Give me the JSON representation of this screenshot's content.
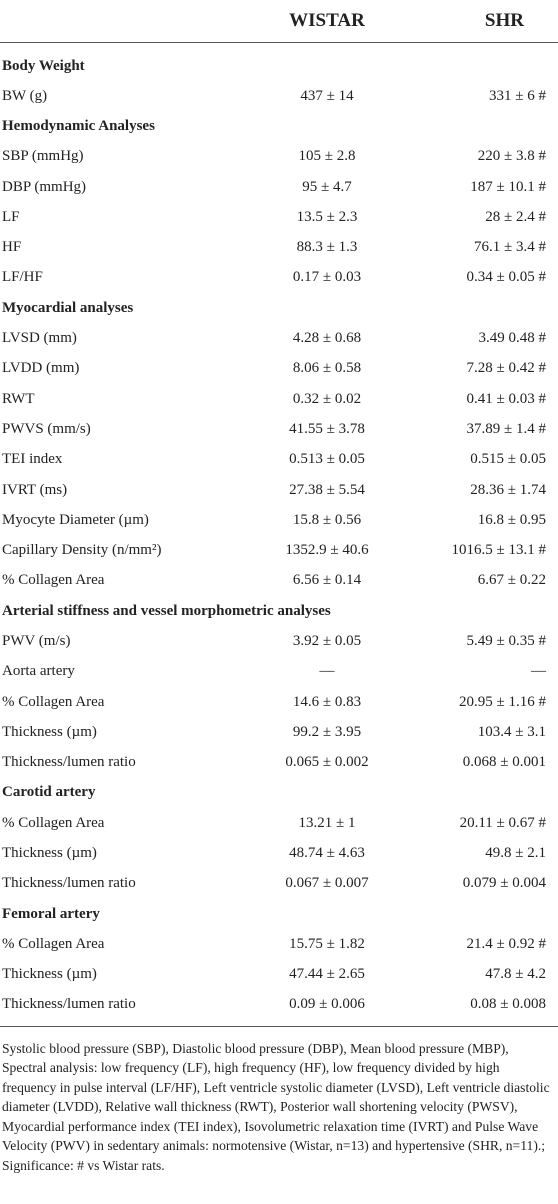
{
  "header": {
    "col1": "",
    "col2": "WISTAR",
    "col3": "SHR"
  },
  "rows": [
    {
      "type": "section",
      "label": "Body Weight",
      "wistar": "",
      "shr": ""
    },
    {
      "type": "data",
      "label": "BW (g)",
      "wistar": "437 ± 14",
      "shr": "331 ± 6 #"
    },
    {
      "type": "section",
      "label": "Hemodynamic Analyses",
      "wistar": "",
      "shr": ""
    },
    {
      "type": "data",
      "label": "SBP (mmHg)",
      "wistar": "105 ± 2.8",
      "shr": "220 ± 3.8 #"
    },
    {
      "type": "data",
      "label": "DBP (mmHg)",
      "wistar": "95 ± 4.7",
      "shr": "187 ± 10.1 #"
    },
    {
      "type": "data",
      "label": "LF",
      "wistar": "13.5 ± 2.3",
      "shr": "28 ± 2.4 #"
    },
    {
      "type": "data",
      "label": "HF",
      "wistar": "88.3 ± 1.3",
      "shr": "76.1 ± 3.4 #"
    },
    {
      "type": "data",
      "label": "LF/HF",
      "wistar": "0.17 ± 0.03",
      "shr": "0.34 ± 0.05 #"
    },
    {
      "type": "section",
      "label": "Myocardial analyses",
      "wistar": "",
      "shr": ""
    },
    {
      "type": "data",
      "label": "LVSD (mm)",
      "wistar": "4.28 ± 0.68",
      "shr": "3.49 0.48 #"
    },
    {
      "type": "data",
      "label": "LVDD (mm)",
      "wistar": "8.06 ± 0.58",
      "shr": "7.28 ± 0.42 #"
    },
    {
      "type": "data",
      "label": "RWT",
      "wistar": "0.32 ± 0.02",
      "shr": "0.41 ± 0.03 #"
    },
    {
      "type": "data",
      "label": "PWVS (mm/s)",
      "wistar": "41.55 ± 3.78",
      "shr": "37.89 ± 1.4 #"
    },
    {
      "type": "data",
      "label": "TEI index",
      "wistar": "0.513 ± 0.05",
      "shr": "0.515 ± 0.05"
    },
    {
      "type": "data",
      "label": "IVRT (ms)",
      "wistar": "27.38 ± 5.54",
      "shr": "28.36 ± 1.74"
    },
    {
      "type": "data",
      "label": "Myocyte Diameter (µm)",
      "wistar": "15.8 ± 0.56",
      "shr": "16.8 ± 0.95"
    },
    {
      "type": "data",
      "label": "Capillary Density (n/mm²)",
      "wistar": "1352.9 ± 40.6",
      "shr": "1016.5 ± 13.1 #"
    },
    {
      "type": "data",
      "label": "% Collagen Area",
      "wistar": "6.56 ± 0.14",
      "shr": "6.67 ± 0.22"
    },
    {
      "type": "section",
      "label": "Arterial stiffness and vessel morphometric analyses",
      "wistar": "",
      "shr": ""
    },
    {
      "type": "data",
      "label": "PWV (m/s)",
      "wistar": "3.92 ± 0.05",
      "shr": "5.49 ± 0.35 #"
    },
    {
      "type": "data",
      "label": "Aorta artery",
      "wistar": "—",
      "shr": "—"
    },
    {
      "type": "data",
      "label": "% Collagen Area",
      "wistar": "14.6 ± 0.83",
      "shr": "20.95 ± 1.16 #"
    },
    {
      "type": "data",
      "label": "Thickness (µm)",
      "wistar": "99.2 ± 3.95",
      "shr": "103.4 ± 3.1"
    },
    {
      "type": "data",
      "label": "Thickness/lumen ratio",
      "wistar": "0.065 ± 0.002",
      "shr": "0.068 ± 0.001"
    },
    {
      "type": "section",
      "label": "Carotid artery",
      "wistar": "",
      "shr": ""
    },
    {
      "type": "data",
      "label": "% Collagen Area",
      "wistar": "13.21 ± 1",
      "shr": "20.11 ± 0.67 #"
    },
    {
      "type": "data",
      "label": "Thickness (µm)",
      "wistar": "48.74 ± 4.63",
      "shr": "49.8 ± 2.1"
    },
    {
      "type": "data",
      "label": "Thickness/lumen ratio",
      "wistar": "0.067 ± 0.007",
      "shr": "0.079 ± 0.004"
    },
    {
      "type": "section",
      "label": "Femoral artery",
      "wistar": "",
      "shr": ""
    },
    {
      "type": "data",
      "label": "% Collagen Area",
      "wistar": "15.75 ± 1.82",
      "shr": "21.4 ± 0.92 #"
    },
    {
      "type": "data",
      "label": "Thickness (µm)",
      "wistar": "47.44 ± 2.65",
      "shr": "47.8 ± 4.2"
    },
    {
      "type": "data",
      "label": "Thickness/lumen ratio",
      "wistar": "0.09 ± 0.006",
      "shr": "0.08 ± 0.008"
    }
  ],
  "footnote": "Systolic blood pressure (SBP), Diastolic blood pressure (DBP), Mean blood pressure (MBP), Spectral analysis: low frequency (LF), high frequency (HF), low frequency divided by high frequency in pulse interval (LF/HF), Left ventricle systolic diameter (LVSD), Left ventricle diastolic diameter (LVDD), Relative wall thickness (RWT), Posterior wall shortening velocity (PWSV), Myocardial performance index (TEI index), Isovolumetric relaxation time (IVRT) and Pulse Wave Velocity (PWV) in sedentary animals: normotensive (Wistar, n=13) and hypertensive (SHR, n=11).; Significance: # vs Wistar rats."
}
